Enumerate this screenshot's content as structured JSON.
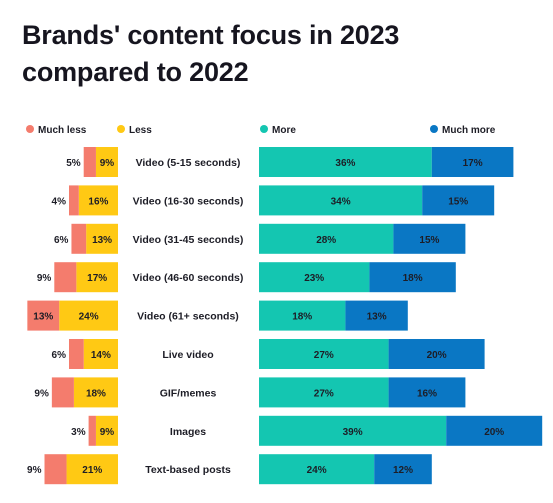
{
  "title_lines": [
    "Brands' content focus in 2023",
    "compared to 2022"
  ],
  "chart_data": {
    "type": "bar",
    "orientation": "horizontal",
    "stacking": "diverging",
    "title": "Brands' content focus in 2023 compared to 2022",
    "legend_position": "top",
    "categories": [
      "Video (5-15 seconds)",
      "Video (16-30 seconds)",
      "Video (31-45 seconds)",
      "Video (46-60 seconds)",
      "Video (61+ seconds)",
      "Live video",
      "GIF/memes",
      "Images",
      "Text-based posts"
    ],
    "series": [
      {
        "name": "Much less",
        "side": "left",
        "color": "#f47c6d",
        "values": [
          5,
          4,
          6,
          9,
          13,
          6,
          9,
          3,
          9
        ]
      },
      {
        "name": "Less",
        "side": "left",
        "color": "#ffc914",
        "values": [
          9,
          16,
          13,
          17,
          24,
          14,
          18,
          9,
          21
        ]
      },
      {
        "name": "More",
        "side": "right",
        "color": "#14c6b1",
        "values": [
          36,
          34,
          28,
          23,
          18,
          27,
          27,
          39,
          24
        ]
      },
      {
        "name": "Much more",
        "side": "right",
        "color": "#0a77c4",
        "values": [
          17,
          15,
          15,
          18,
          13,
          20,
          16,
          20,
          12
        ]
      }
    ],
    "value_suffix": "%",
    "grid": false
  }
}
